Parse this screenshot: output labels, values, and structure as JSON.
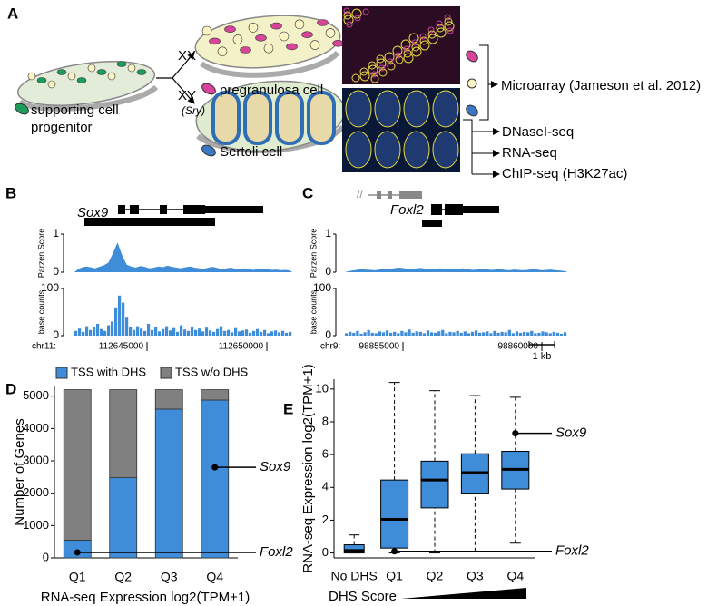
{
  "panel_labels": [
    "A",
    "B",
    "C",
    "D",
    "E"
  ],
  "diagram": {
    "sex_labels": [
      "XX",
      "XY"
    ],
    "sry": "(Sry)",
    "progenitor_label": [
      "supporting cell",
      "progenitor"
    ],
    "pregranulosa_label": "pregranulosa cell",
    "sertoli_label": "Sertoli cell",
    "assays": [
      "Microarray (Jameson et al. 2012)",
      "DNaseI-seq",
      "RNA-seq",
      "ChIP-seq (H3K27ac)"
    ]
  },
  "tracks": [
    {
      "gene": "Sox9",
      "chrom": "chr11:",
      "positions": [
        "112645000",
        "112650000"
      ],
      "color": "#3f8cd8",
      "parzen": {
        "label": "Parzen Score",
        "ylim": [
          0,
          1
        ],
        "yticks": [
          0,
          1
        ],
        "values": [
          0.05,
          0.12,
          0.15,
          0.13,
          0.1,
          0.14,
          0.18,
          0.25,
          0.5,
          0.78,
          0.45,
          0.2,
          0.15,
          0.12,
          0.16,
          0.14,
          0.1,
          0.12,
          0.15,
          0.13,
          0.17,
          0.14,
          0.12,
          0.1,
          0.13,
          0.15,
          0.12,
          0.1,
          0.09,
          0.12,
          0.14,
          0.11,
          0.08,
          0.1,
          0.12,
          0.09,
          0.07,
          0.1,
          0.08,
          0.06,
          0.09,
          0.07,
          0.08,
          0.06,
          0.07,
          0.05,
          0.06,
          0.04
        ]
      },
      "counts": {
        "label": "base counts",
        "ylim": [
          0,
          100
        ],
        "yticks": [
          0,
          100
        ],
        "values": [
          10,
          15,
          8,
          20,
          12,
          18,
          25,
          14,
          10,
          22,
          30,
          60,
          85,
          70,
          40,
          18,
          12,
          20,
          15,
          10,
          25,
          12,
          18,
          9,
          14,
          20,
          11,
          16,
          8,
          22,
          13,
          10,
          19,
          12,
          15,
          9,
          17,
          11,
          8,
          14,
          20,
          10,
          12,
          7,
          16,
          9,
          11,
          13,
          6,
          10,
          14,
          8,
          12,
          5,
          9,
          11,
          7,
          10,
          6,
          8
        ]
      }
    },
    {
      "gene": "Foxl2",
      "chrom": "chr9:",
      "positions": [
        "98855000",
        "98860000"
      ],
      "scale_bar": "1 kb",
      "color": "#3f8cd8",
      "parzen": {
        "label": "Parzen Score",
        "ylim": [
          0,
          1
        ],
        "yticks": [
          0,
          1
        ],
        "values": [
          0.02,
          0.04,
          0.06,
          0.08,
          0.07,
          0.06,
          0.05,
          0.07,
          0.09,
          0.08,
          0.1,
          0.12,
          0.11,
          0.09,
          0.08,
          0.1,
          0.11,
          0.09,
          0.07,
          0.08,
          0.1,
          0.09,
          0.08,
          0.07,
          0.09,
          0.1,
          0.08,
          0.06,
          0.07,
          0.09,
          0.08,
          0.06,
          0.07,
          0.08,
          0.06,
          0.05,
          0.07,
          0.06,
          0.05,
          0.06,
          0.08,
          0.07,
          0.05,
          0.06,
          0.07,
          0.05,
          0.04,
          0.03
        ]
      },
      "counts": {
        "label": "base counts",
        "ylim": [
          0,
          100
        ],
        "yticks": [
          0,
          100
        ],
        "values": [
          5,
          8,
          6,
          10,
          4,
          7,
          12,
          6,
          5,
          9,
          7,
          11,
          6,
          8,
          5,
          10,
          7,
          13,
          6,
          9,
          8,
          5,
          11,
          7,
          6,
          9,
          12,
          5,
          8,
          7,
          10,
          6,
          9,
          5,
          8,
          11,
          6,
          7,
          9,
          5,
          10,
          6,
          8,
          7,
          12,
          5,
          9,
          6,
          8,
          7,
          10,
          5,
          6,
          9,
          7,
          5,
          8,
          6,
          4,
          7
        ]
      }
    }
  ],
  "chart_data": [
    {
      "type": "bar",
      "stacked": true,
      "categories": [
        "Q1",
        "Q2",
        "Q3",
        "Q4"
      ],
      "series": [
        {
          "name": "TSS with DHS",
          "color": "#3f8cd8",
          "values": [
            550,
            2480,
            4600,
            4880
          ]
        },
        {
          "name": "TSS w/o DHS",
          "color": "#808080",
          "values": [
            4650,
            2720,
            600,
            320
          ]
        }
      ],
      "ylim": [
        0,
        5300
      ],
      "yticks": [
        0,
        1000,
        2000,
        3000,
        4000,
        5000
      ],
      "ylabel": "Number of Genes",
      "xlabel": "RNA-seq Expression log2(TPM+1)",
      "annotations": [
        {
          "label": "Sox9",
          "category": "Q4",
          "value": 2800
        },
        {
          "label": "Foxl2",
          "category": "Q1",
          "value": 170
        }
      ]
    },
    {
      "type": "box",
      "categories": [
        "No DHS",
        "Q1",
        "Q2",
        "Q3",
        "Q4"
      ],
      "color": "#3f8cd8",
      "boxes": [
        {
          "min": 0,
          "q1": 0,
          "median": 0.15,
          "q3": 0.5,
          "max": 1.1
        },
        {
          "min": 0,
          "q1": 0.3,
          "median": 2.05,
          "q3": 4.45,
          "max": 10.4
        },
        {
          "min": 0,
          "q1": 2.75,
          "median": 4.45,
          "q3": 5.6,
          "max": 9.9
        },
        {
          "min": 0.1,
          "q1": 3.65,
          "median": 4.9,
          "q3": 6.05,
          "max": 9.6
        },
        {
          "min": 0.6,
          "q1": 3.9,
          "median": 5.1,
          "q3": 6.2,
          "max": 9.5
        }
      ],
      "ylim": [
        -0.3,
        10.6
      ],
      "yticks": [
        0,
        2,
        4,
        6,
        8,
        10
      ],
      "ylabel": "RNA-seq Expression log2(TPM+1)",
      "xlabel": "DHS Score",
      "annotations": [
        {
          "label": "Sox9",
          "category": "Q4",
          "value": 7.3
        },
        {
          "label": "Foxl2",
          "category": "Q1",
          "value": 0.1
        }
      ]
    }
  ]
}
